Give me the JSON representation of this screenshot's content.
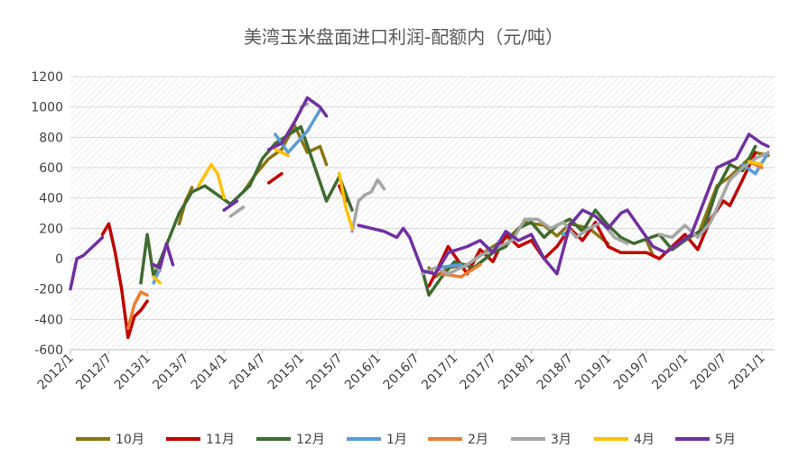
{
  "chart_data": {
    "type": "line",
    "title": "美湾玉米盘面进口利润-配额内（元/吨）",
    "xlabel": "",
    "ylabel": "",
    "ylim": [
      -600,
      1200
    ],
    "yticks": [
      -600,
      -400,
      -200,
      0,
      200,
      400,
      600,
      800,
      1000,
      1200
    ],
    "xlim": [
      "2012-01",
      "2021-03"
    ],
    "xticks": [
      "2012/1",
      "2012/7",
      "2013/1",
      "2013/7",
      "2014/1",
      "2014/7",
      "2015/1",
      "2015/7",
      "2016/1",
      "2016/7",
      "2017/1",
      "2017/7",
      "2018/1",
      "2018/7",
      "2019/1",
      "2019/7",
      "2020/1",
      "2020/7",
      "2021/1"
    ],
    "grid": true,
    "legend_position": "bottom",
    "series": [
      {
        "name": "10月",
        "color": "#8B7512",
        "points": [
          [
            "2013-06",
            230
          ],
          [
            "2013-07",
            380
          ],
          [
            "2013-08",
            470
          ],
          [
            "2014-04",
            440
          ],
          [
            "2014-06",
            560
          ],
          [
            "2014-08",
            660
          ],
          [
            "2014-10",
            720
          ],
          [
            "2014-12",
            880
          ],
          [
            "2015-02",
            700
          ],
          [
            "2015-04",
            740
          ],
          [
            "2015-05",
            620
          ],
          [
            "2016-09",
            -60
          ],
          [
            "2016-10",
            -120
          ],
          [
            "2016-12",
            -60
          ],
          [
            "2017-03",
            -40
          ],
          [
            "2017-05",
            20
          ],
          [
            "2017-07",
            80
          ],
          [
            "2017-10",
            160
          ],
          [
            "2017-12",
            240
          ],
          [
            "2018-03",
            220
          ],
          [
            "2018-05",
            150
          ],
          [
            "2018-07",
            230
          ],
          [
            "2018-10",
            200
          ],
          [
            "2019-01",
            100
          ],
          [
            "2019-07",
            120
          ],
          [
            "2019-08",
            20
          ],
          [
            "2020-03",
            150
          ],
          [
            "2020-06",
            480
          ],
          [
            "2020-08",
            540
          ],
          [
            "2020-10",
            620
          ],
          [
            "2020-12",
            700
          ],
          [
            "2021-02",
            680
          ]
        ]
      },
      {
        "name": "11月",
        "color": "#C00000",
        "points": [
          [
            "2012-06",
            160
          ],
          [
            "2012-07",
            230
          ],
          [
            "2012-08",
            40
          ],
          [
            "2012-09",
            -200
          ],
          [
            "2012-10",
            -520
          ],
          [
            "2012-11",
            -380
          ],
          [
            "2012-12",
            -340
          ],
          [
            "2013-01",
            -280
          ],
          [
            "2014-08",
            500
          ],
          [
            "2014-10",
            560
          ],
          [
            "2015-07",
            480
          ],
          [
            "2015-08",
            380
          ],
          [
            "2016-09",
            -180
          ],
          [
            "2016-10",
            -100
          ],
          [
            "2016-12",
            80
          ],
          [
            "2017-01",
            20
          ],
          [
            "2017-03",
            -100
          ],
          [
            "2017-05",
            60
          ],
          [
            "2017-07",
            -20
          ],
          [
            "2017-09",
            160
          ],
          [
            "2017-11",
            80
          ],
          [
            "2018-01",
            120
          ],
          [
            "2018-03",
            0
          ],
          [
            "2018-05",
            80
          ],
          [
            "2018-07",
            200
          ],
          [
            "2018-09",
            120
          ],
          [
            "2018-11",
            240
          ],
          [
            "2019-01",
            80
          ],
          [
            "2019-03",
            40
          ],
          [
            "2019-07",
            40
          ],
          [
            "2019-09",
            0
          ],
          [
            "2019-11",
            80
          ],
          [
            "2020-01",
            160
          ],
          [
            "2020-03",
            60
          ],
          [
            "2020-05",
            260
          ],
          [
            "2020-07",
            380
          ],
          [
            "2020-08",
            350
          ],
          [
            "2020-10",
            520
          ],
          [
            "2020-12",
            700
          ]
        ]
      },
      {
        "name": "12月",
        "color": "#3E6B2E",
        "points": [
          [
            "2012-12",
            -160
          ],
          [
            "2013-01",
            160
          ],
          [
            "2013-02",
            -120
          ],
          [
            "2013-06",
            300
          ],
          [
            "2013-08",
            440
          ],
          [
            "2013-10",
            480
          ],
          [
            "2013-12",
            420
          ],
          [
            "2014-02",
            360
          ],
          [
            "2014-05",
            480
          ],
          [
            "2014-07",
            660
          ],
          [
            "2014-09",
            760
          ],
          [
            "2015-01",
            870
          ],
          [
            "2015-05",
            380
          ],
          [
            "2015-07",
            540
          ],
          [
            "2015-09",
            320
          ],
          [
            "2016-08",
            -80
          ],
          [
            "2016-09",
            -240
          ],
          [
            "2016-11",
            -120
          ],
          [
            "2017-01",
            -20
          ],
          [
            "2017-04",
            -60
          ],
          [
            "2017-07",
            40
          ],
          [
            "2017-09",
            80
          ],
          [
            "2017-11",
            200
          ],
          [
            "2018-01",
            240
          ],
          [
            "2018-03",
            140
          ],
          [
            "2018-05",
            220
          ],
          [
            "2018-07",
            260
          ],
          [
            "2018-09",
            180
          ],
          [
            "2018-11",
            320
          ],
          [
            "2019-01",
            220
          ],
          [
            "2019-03",
            140
          ],
          [
            "2019-05",
            100
          ],
          [
            "2019-09",
            160
          ],
          [
            "2019-11",
            60
          ],
          [
            "2020-01",
            120
          ],
          [
            "2020-04",
            200
          ],
          [
            "2020-06",
            460
          ],
          [
            "2020-08",
            620
          ],
          [
            "2020-10",
            580
          ],
          [
            "2020-12",
            740
          ]
        ]
      },
      {
        "name": "1月",
        "color": "#5B9BD5",
        "points": [
          [
            "2013-02",
            -160
          ],
          [
            "2013-03",
            -60
          ],
          [
            "2014-09",
            820
          ],
          [
            "2014-11",
            700
          ],
          [
            "2015-02",
            840
          ],
          [
            "2015-04",
            980
          ],
          [
            "2016-10",
            -60
          ],
          [
            "2017-02",
            -40
          ],
          [
            "2018-06",
            160
          ],
          [
            "2020-10",
            620
          ],
          [
            "2020-12",
            560
          ],
          [
            "2021-02",
            700
          ]
        ]
      },
      {
        "name": "2月",
        "color": "#ED7D31",
        "points": [
          [
            "2012-10",
            -460
          ],
          [
            "2012-11",
            -300
          ],
          [
            "2012-12",
            -220
          ],
          [
            "2013-01",
            -240
          ],
          [
            "2016-11",
            -100
          ],
          [
            "2017-02",
            -120
          ],
          [
            "2017-05",
            -40
          ],
          [
            "2020-11",
            640
          ],
          [
            "2021-01",
            600
          ]
        ]
      },
      {
        "name": "3月",
        "color": "#A5A5A5",
        "points": [
          [
            "2013-02",
            -40
          ],
          [
            "2013-03",
            -80
          ],
          [
            "2014-02",
            280
          ],
          [
            "2014-04",
            340
          ],
          [
            "2015-01",
            1000
          ],
          [
            "2015-02",
            1020
          ],
          [
            "2015-09",
            180
          ],
          [
            "2015-10",
            380
          ],
          [
            "2015-11",
            420
          ],
          [
            "2015-12",
            440
          ],
          [
            "2016-01",
            520
          ],
          [
            "2016-02",
            460
          ],
          [
            "2016-08",
            -100
          ],
          [
            "2016-10",
            -60
          ],
          [
            "2016-12",
            -100
          ],
          [
            "2017-03",
            -40
          ],
          [
            "2017-05",
            20
          ],
          [
            "2017-07",
            60
          ],
          [
            "2017-10",
            120
          ],
          [
            "2017-12",
            260
          ],
          [
            "2018-02",
            260
          ],
          [
            "2018-04",
            200
          ],
          [
            "2018-06",
            240
          ],
          [
            "2018-08",
            140
          ],
          [
            "2018-10",
            200
          ],
          [
            "2018-12",
            240
          ],
          [
            "2019-02",
            140
          ],
          [
            "2019-04",
            100
          ],
          [
            "2019-09",
            160
          ],
          [
            "2019-11",
            140
          ],
          [
            "2020-01",
            220
          ],
          [
            "2020-03",
            140
          ],
          [
            "2020-05",
            240
          ],
          [
            "2020-08",
            520
          ],
          [
            "2020-10",
            600
          ],
          [
            "2020-12",
            660
          ],
          [
            "2021-02",
            700
          ]
        ]
      },
      {
        "name": "4月",
        "color": "#FFC000",
        "points": [
          [
            "2013-02",
            -120
          ],
          [
            "2013-03",
            -160
          ],
          [
            "2013-09",
            480
          ],
          [
            "2013-11",
            620
          ],
          [
            "2013-12",
            560
          ],
          [
            "2014-01",
            400
          ],
          [
            "2014-09",
            720
          ],
          [
            "2014-11",
            680
          ],
          [
            "2015-07",
            560
          ],
          [
            "2015-08",
            340
          ],
          [
            "2015-09",
            200
          ],
          [
            "2020-11",
            640
          ],
          [
            "2021-01",
            620
          ]
        ]
      },
      {
        "name": "5月",
        "color": "#7030A0",
        "points": [
          [
            "2012-01",
            -200
          ],
          [
            "2012-02",
            0
          ],
          [
            "2012-03",
            20
          ],
          [
            "2012-04",
            60
          ],
          [
            "2012-05",
            100
          ],
          [
            "2012-06",
            140
          ],
          [
            "2013-02",
            -40
          ],
          [
            "2013-03",
            -60
          ],
          [
            "2013-04",
            100
          ],
          [
            "2013-05",
            -40
          ],
          [
            "2014-01",
            320
          ],
          [
            "2014-03",
            380
          ],
          [
            "2014-08",
            720
          ],
          [
            "2014-10",
            760
          ],
          [
            "2014-12",
            900
          ],
          [
            "2015-02",
            1060
          ],
          [
            "2015-04",
            1000
          ],
          [
            "2015-05",
            940
          ],
          [
            "2015-10",
            220
          ],
          [
            "2015-12",
            200
          ],
          [
            "2016-02",
            180
          ],
          [
            "2016-04",
            140
          ],
          [
            "2016-05",
            200
          ],
          [
            "2016-06",
            140
          ],
          [
            "2016-08",
            -80
          ],
          [
            "2016-10",
            -100
          ],
          [
            "2016-12",
            40
          ],
          [
            "2017-03",
            80
          ],
          [
            "2017-05",
            120
          ],
          [
            "2017-07",
            40
          ],
          [
            "2017-09",
            180
          ],
          [
            "2017-11",
            120
          ],
          [
            "2018-01",
            160
          ],
          [
            "2018-03",
            0
          ],
          [
            "2018-05",
            -100
          ],
          [
            "2018-07",
            220
          ],
          [
            "2018-09",
            320
          ],
          [
            "2018-11",
            280
          ],
          [
            "2019-01",
            200
          ],
          [
            "2019-03",
            300
          ],
          [
            "2019-04",
            320
          ],
          [
            "2019-08",
            80
          ],
          [
            "2019-10",
            40
          ],
          [
            "2019-12",
            100
          ],
          [
            "2020-02",
            160
          ],
          [
            "2020-04",
            380
          ],
          [
            "2020-06",
            600
          ],
          [
            "2020-09",
            660
          ],
          [
            "2020-11",
            820
          ],
          [
            "2021-01",
            760
          ],
          [
            "2021-02",
            740
          ]
        ]
      }
    ]
  }
}
